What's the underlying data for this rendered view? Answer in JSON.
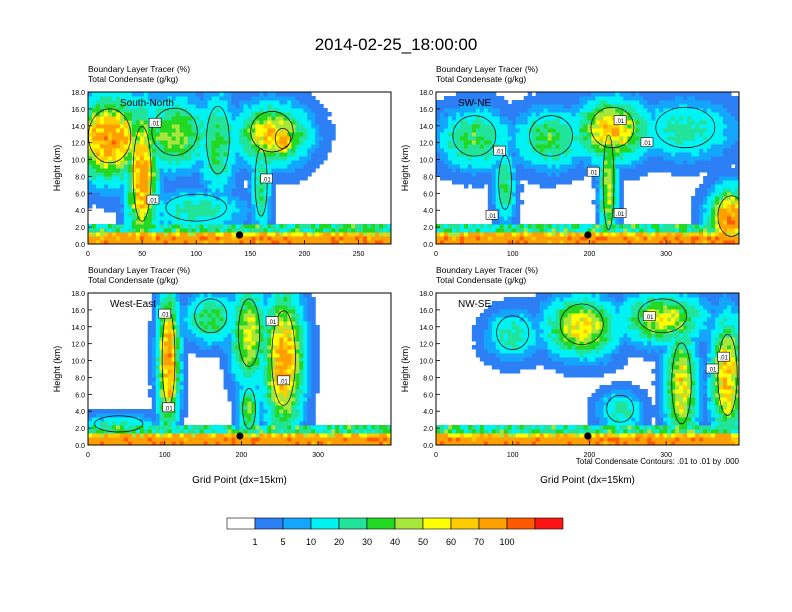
{
  "figure": {
    "title": "2014-02-25_18:00:00",
    "footer_note": "Total Condensate Contours: .01 to .01 by .000",
    "colorbar": {
      "colors": [
        "#ffffff",
        "#2d7ff5",
        "#14a6ff",
        "#00f2f2",
        "#22e39a",
        "#22d822",
        "#a8e63c",
        "#ffff00",
        "#ffcc00",
        "#ffa000",
        "#ff5a00",
        "#ff1414"
      ],
      "labels": [
        "1",
        "5",
        "10",
        "20",
        "30",
        "40",
        "50",
        "60",
        "70",
        "100"
      ]
    }
  },
  "chart_data": [
    {
      "type": "heatmap",
      "panel_label": "South-North",
      "title_line1": "Boundary Layer Tracer   (%)",
      "title_line2": "Total Condensate   (g/kg)",
      "ylabel": "Height (km)",
      "xlabel": "",
      "xlim": [
        0,
        280
      ],
      "ylim": [
        0,
        18
      ],
      "xticks": [
        0,
        50,
        100,
        150,
        200,
        250
      ],
      "yticks": [
        "0.0",
        "2.0",
        "4.0",
        "6.0",
        "8.0",
        "10.0",
        "12.0",
        "14.0",
        "16.0",
        "18.0"
      ],
      "marker_x": 140,
      "contour_labels": [
        {
          "x": 62,
          "y": 14.3,
          "text": ".01"
        },
        {
          "x": 165,
          "y": 7.7,
          "text": ".01"
        },
        {
          "x": 60,
          "y": 5.2,
          "text": ".01"
        }
      ],
      "cores": [
        {
          "x": 20,
          "y": 12.5,
          "sx": 28,
          "sy": 4,
          "v": 85
        },
        {
          "x": 50,
          "y": 8,
          "sx": 12,
          "sy": 7,
          "v": 80
        },
        {
          "x": 80,
          "y": 13,
          "sx": 30,
          "sy": 3.5,
          "v": 45
        },
        {
          "x": 120,
          "y": 12,
          "sx": 15,
          "sy": 5,
          "v": 35
        },
        {
          "x": 170,
          "y": 13,
          "sx": 28,
          "sy": 3,
          "v": 65
        },
        {
          "x": 180,
          "y": 12.2,
          "sx": 10,
          "sy": 1.5,
          "v": 85
        },
        {
          "x": 160,
          "y": 7,
          "sx": 8,
          "sy": 5,
          "v": 30
        },
        {
          "x": 100,
          "y": 4,
          "sx": 40,
          "sy": 2,
          "v": 25
        }
      ]
    },
    {
      "type": "heatmap",
      "panel_label": "SW-NE",
      "title_line1": "Boundary Layer Tracer   (%)",
      "title_line2": "Total Condensate   (g/kg)",
      "ylabel": "Height (km)",
      "xlabel": "",
      "xlim": [
        0,
        395
      ],
      "ylim": [
        0,
        18
      ],
      "xticks": [
        0,
        100,
        200,
        300
      ],
      "yticks": [
        "0.0",
        "2.0",
        "4.0",
        "6.0",
        "8.0",
        "10.0",
        "12.0",
        "14.0",
        "16.0",
        "18.0"
      ],
      "marker_x": 198,
      "contour_labels": [
        {
          "x": 205,
          "y": 8.5,
          "text": ".01"
        },
        {
          "x": 83,
          "y": 11,
          "text": ".01"
        },
        {
          "x": 73,
          "y": 3.4,
          "text": ".01"
        },
        {
          "x": 240,
          "y": 14.6,
          "text": ".01"
        },
        {
          "x": 275,
          "y": 12,
          "text": ".01"
        },
        {
          "x": 240,
          "y": 3.6,
          "text": ".01"
        }
      ],
      "cores": [
        {
          "x": 50,
          "y": 12.5,
          "sx": 40,
          "sy": 3,
          "v": 35
        },
        {
          "x": 150,
          "y": 12.5,
          "sx": 40,
          "sy": 3,
          "v": 35
        },
        {
          "x": 230,
          "y": 13.5,
          "sx": 40,
          "sy": 3,
          "v": 70
        },
        {
          "x": 225,
          "y": 7,
          "sx": 10,
          "sy": 7,
          "v": 50
        },
        {
          "x": 325,
          "y": 13.5,
          "sx": 55,
          "sy": 3,
          "v": 25
        },
        {
          "x": 385,
          "y": 3,
          "sx": 25,
          "sy": 3,
          "v": 90
        },
        {
          "x": 90,
          "y": 7,
          "sx": 12,
          "sy": 4,
          "v": 30
        }
      ]
    },
    {
      "type": "heatmap",
      "panel_label": "West-East",
      "title_line1": "Boundary Layer Tracer   (%)",
      "title_line2": "Total Condensate   (g/kg)",
      "ylabel": "Height (km)",
      "xlabel": "Grid Point (dx=15km)",
      "xlim": [
        0,
        395
      ],
      "ylim": [
        0,
        18
      ],
      "xticks": [
        0,
        100,
        200,
        300
      ],
      "yticks": [
        "0.0",
        "2.0",
        "4.0",
        "6.0",
        "8.0",
        "10.0",
        "12.0",
        "14.0",
        "16.0",
        "18.0"
      ],
      "marker_x": 198,
      "contour_labels": [
        {
          "x": 100,
          "y": 15.5,
          "text": ".01"
        },
        {
          "x": 240,
          "y": 14.6,
          "text": ".01"
        },
        {
          "x": 255,
          "y": 7.6,
          "text": ".01"
        },
        {
          "x": 105,
          "y": 4.4,
          "text": ".01"
        }
      ],
      "cores": [
        {
          "x": 105,
          "y": 10,
          "sx": 12,
          "sy": 7,
          "v": 85
        },
        {
          "x": 255,
          "y": 10,
          "sx": 22,
          "sy": 7,
          "v": 80
        },
        {
          "x": 210,
          "y": 13,
          "sx": 20,
          "sy": 5,
          "v": 55
        },
        {
          "x": 160,
          "y": 15,
          "sx": 30,
          "sy": 2.5,
          "v": 35
        },
        {
          "x": 210,
          "y": 4,
          "sx": 12,
          "sy": 3,
          "v": 40
        },
        {
          "x": 40,
          "y": 2.2,
          "sx": 45,
          "sy": 1.2,
          "v": 25
        }
      ]
    },
    {
      "type": "heatmap",
      "panel_label": "NW-SE",
      "title_line1": "Boundary Layer Tracer   (%)",
      "title_line2": "Total Condensate   (g/kg)",
      "ylabel": "Height (km)",
      "xlabel": "Grid Point (dx=15km)",
      "xlim": [
        0,
        395
      ],
      "ylim": [
        0,
        18
      ],
      "xticks": [
        0,
        100,
        200,
        300
      ],
      "yticks": [
        "0.0",
        "2.0",
        "4.0",
        "6.0",
        "8.0",
        "10.0",
        "12.0",
        "14.0",
        "16.0",
        "18.0"
      ],
      "marker_x": 198,
      "contour_labels": [
        {
          "x": 278,
          "y": 15.2,
          "text": ".01"
        },
        {
          "x": 375,
          "y": 10.4,
          "text": ".01"
        },
        {
          "x": 360,
          "y": 9,
          "text": ".01"
        }
      ],
      "cores": [
        {
          "x": 190,
          "y": 14,
          "sx": 40,
          "sy": 3,
          "v": 60
        },
        {
          "x": 295,
          "y": 15,
          "sx": 45,
          "sy": 2.5,
          "v": 55
        },
        {
          "x": 320,
          "y": 7,
          "sx": 18,
          "sy": 6,
          "v": 60
        },
        {
          "x": 380,
          "y": 8,
          "sx": 18,
          "sy": 6,
          "v": 70
        },
        {
          "x": 100,
          "y": 13,
          "sx": 30,
          "sy": 2.5,
          "v": 25
        },
        {
          "x": 240,
          "y": 4,
          "sx": 25,
          "sy": 2,
          "v": 25
        }
      ]
    }
  ]
}
